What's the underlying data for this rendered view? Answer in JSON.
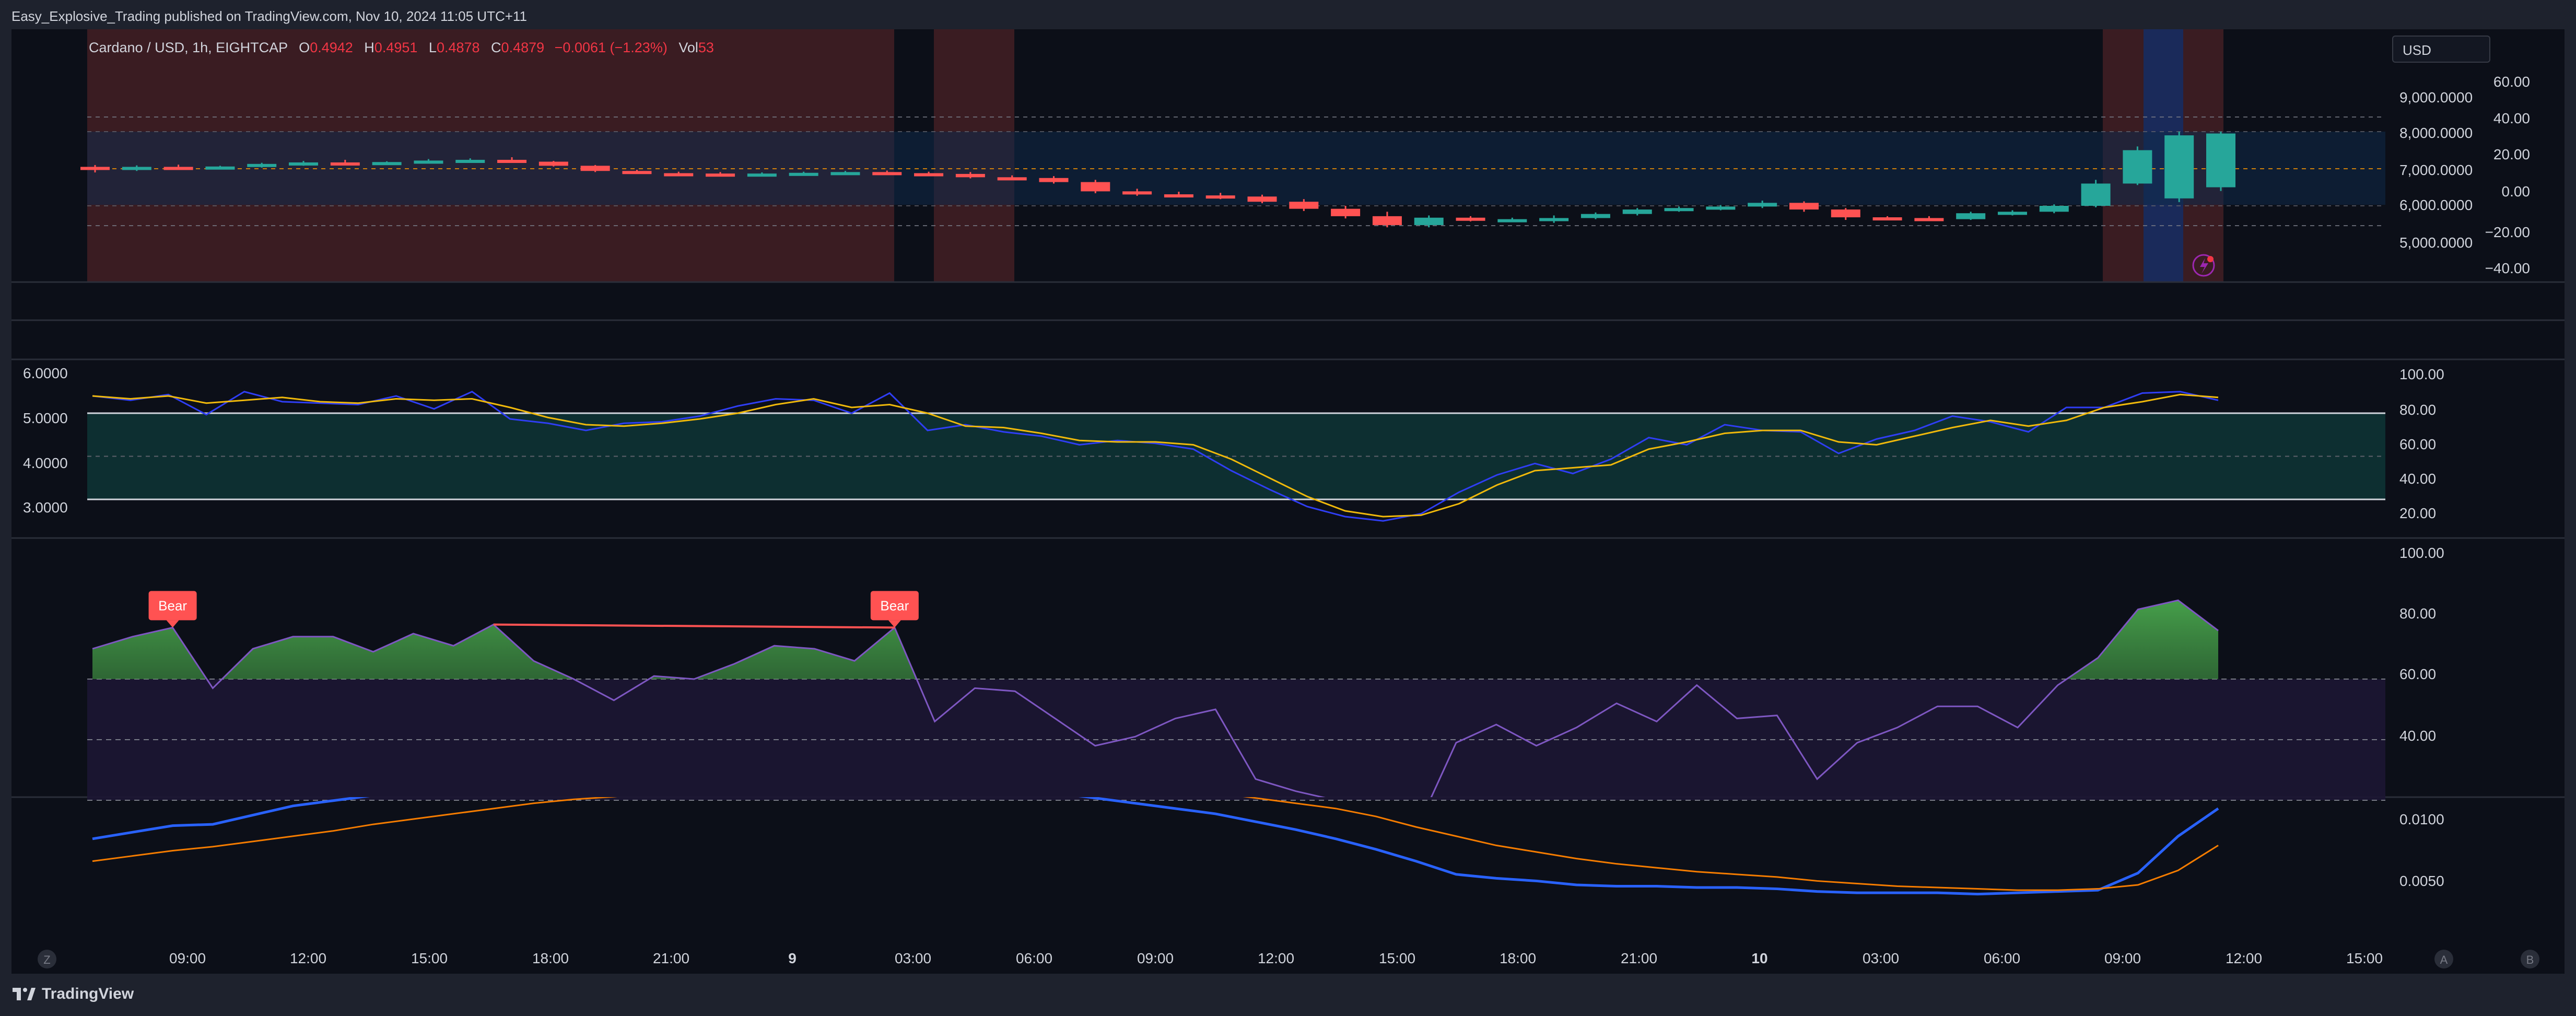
{
  "header": {
    "publish_line": "Easy_Explosive_Trading published on TradingView.com, Nov 10, 2024 11:05 UTC+11"
  },
  "legend": {
    "symbol": "Cardano / USD, 1h, EIGHTCAP",
    "o_label": "O",
    "o_value": "0.4942",
    "h_label": "H",
    "h_value": "0.4951",
    "l_label": "L",
    "l_value": "0.4878",
    "c_label": "C",
    "c_value": "0.4879",
    "change": "−0.0061 (−1.23%)",
    "vol_label": "Vol",
    "vol_value": "53"
  },
  "currency_button": "USD",
  "panes": {
    "price": {
      "left_axis": [
        "60.00",
        "40.00",
        "20.00",
        "0.00",
        "−20.00",
        "−40.00"
      ],
      "right_axis": [
        "9,000.0000",
        "8,000.0000",
        "7,000.0000",
        "6,000.0000",
        "5,000.0000"
      ]
    },
    "stoch": {
      "left_axis": [
        "6.0000",
        "5.0000",
        "4.0000",
        "3.0000"
      ],
      "right_axis": [
        "100.00",
        "80.00",
        "60.00",
        "40.00",
        "20.00"
      ]
    },
    "rsi": {
      "right_axis": [
        "100.00",
        "80.00",
        "60.00",
        "40.00"
      ],
      "labels": [
        "Bear",
        "Bear"
      ]
    },
    "ma": {
      "right_axis": [
        "0.0100",
        "0.0050"
      ]
    }
  },
  "time_axis": [
    "09:00",
    "12:00",
    "15:00",
    "18:00",
    "21:00",
    "9",
    "03:00",
    "06:00",
    "09:00",
    "12:00",
    "15:00",
    "18:00",
    "21:00",
    "10",
    "03:00",
    "06:00",
    "09:00",
    "12:00",
    "15:00"
  ],
  "time_axis_bold": [
    "9",
    "10"
  ],
  "corner_buttons": {
    "left": "Z",
    "auto": "A",
    "log": "B"
  },
  "footer": {
    "brand": "TradingView"
  },
  "colors": {
    "up": "#26a69a",
    "down": "#ff5252",
    "stoch_k": "#2f3ef5",
    "stoch_d": "#f0b90b",
    "rsi": "#7e57c2",
    "bear": "#ff5252",
    "ma_fast": "#2962ff",
    "ma_slow": "#f57c00"
  },
  "chart_data": [
    {
      "type": "candlestick",
      "title": "Cardano / USD, 1h, EIGHTCAP",
      "candles": [
        {
          "o": 0.5,
          "h": 1,
          "l": -1,
          "c": 0.2
        },
        {
          "o": 0.2,
          "h": 0.9,
          "l": -0.6,
          "c": 0.5
        },
        {
          "o": 0.5,
          "h": 1.1,
          "l": 0.0,
          "c": 0.3
        },
        {
          "o": 0.3,
          "h": 0.8,
          "l": -0.2,
          "c": 0.6
        },
        {
          "o": 0.6,
          "h": 1.6,
          "l": 0.3,
          "c": 1.3
        },
        {
          "o": 1.3,
          "h": 2.1,
          "l": 0.8,
          "c": 1.7
        },
        {
          "o": 1.7,
          "h": 2.4,
          "l": 1.2,
          "c": 1.5
        },
        {
          "o": 1.5,
          "h": 2.0,
          "l": 1.0,
          "c": 1.8
        },
        {
          "o": 1.8,
          "h": 2.6,
          "l": 1.4,
          "c": 2.2
        },
        {
          "o": 2.2,
          "h": 2.8,
          "l": 1.7,
          "c": 2.4
        },
        {
          "o": 2.4,
          "h": 3.1,
          "l": 1.9,
          "c": 1.9
        },
        {
          "o": 1.9,
          "h": 2.1,
          "l": 0.6,
          "c": 0.8
        },
        {
          "o": 0.8,
          "h": 1.0,
          "l": -0.9,
          "c": -0.6
        },
        {
          "o": -0.6,
          "h": -0.3,
          "l": -1.4,
          "c": -1.2
        },
        {
          "o": -1.2,
          "h": -0.8,
          "l": -1.6,
          "c": -1.3
        },
        {
          "o": -1.3,
          "h": -0.9,
          "l": -1.9,
          "c": -1.6
        },
        {
          "o": -1.6,
          "h": -1.0,
          "l": -1.9,
          "c": -1.3
        },
        {
          "o": -1.3,
          "h": -0.8,
          "l": -1.6,
          "c": -1.1
        },
        {
          "o": -1.1,
          "h": -0.6,
          "l": -1.4,
          "c": -0.9
        },
        {
          "o": -0.9,
          "h": -0.5,
          "l": -1.4,
          "c": -1.2
        },
        {
          "o": -1.2,
          "h": -0.8,
          "l": -1.6,
          "c": -1.4
        },
        {
          "o": -1.4,
          "h": -0.9,
          "l": -2.6,
          "c": -2.3
        },
        {
          "o": -2.3,
          "h": -1.8,
          "l": -3.0,
          "c": -2.5
        },
        {
          "o": -2.5,
          "h": -2.0,
          "l": -4.0,
          "c": -3.6
        },
        {
          "o": -3.6,
          "h": -3.0,
          "l": -6.6,
          "c": -6.1
        },
        {
          "o": -6.1,
          "h": -5.4,
          "l": -7.3,
          "c": -6.9
        },
        {
          "o": -6.9,
          "h": -6.2,
          "l": -7.7,
          "c": -7.2
        },
        {
          "o": -7.2,
          "h": -6.5,
          "l": -8.2,
          "c": -7.5
        },
        {
          "o": -7.5,
          "h": -7.0,
          "l": -9.3,
          "c": -8.9
        },
        {
          "o": -8.9,
          "h": -8.2,
          "l": -11.4,
          "c": -10.8
        },
        {
          "o": -10.8,
          "h": -10.0,
          "l": -13.4,
          "c": -12.8
        },
        {
          "o": -12.8,
          "h": -11.6,
          "l": -15.8,
          "c": -15.2
        },
        {
          "o": -15.2,
          "h": -12.6,
          "l": -15.8,
          "c": -13.2
        },
        {
          "o": -13.2,
          "h": -12.8,
          "l": -14.2,
          "c": -13.9
        },
        {
          "o": -13.9,
          "h": -13.2,
          "l": -14.2,
          "c": -13.6
        },
        {
          "o": -13.6,
          "h": -12.6,
          "l": -14.6,
          "c": -13.3
        },
        {
          "o": -13.3,
          "h": -11.8,
          "l": -13.6,
          "c": -12.2
        },
        {
          "o": -12.2,
          "h": -10.6,
          "l": -12.6,
          "c": -11.0
        },
        {
          "o": -11.0,
          "h": -10.2,
          "l": -11.6,
          "c": -10.6
        },
        {
          "o": -10.6,
          "h": -9.8,
          "l": -11.2,
          "c": -10.2
        },
        {
          "o": -10.2,
          "h": -8.6,
          "l": -10.6,
          "c": -9.2
        },
        {
          "o": -9.2,
          "h": -8.8,
          "l": -11.6,
          "c": -11.0
        },
        {
          "o": -11.0,
          "h": -10.6,
          "l": -13.8,
          "c": -13.1
        },
        {
          "o": -13.1,
          "h": -12.8,
          "l": -13.5,
          "c": -13.3
        },
        {
          "o": -13.3,
          "h": -12.8,
          "l": -13.8,
          "c": -13.6
        },
        {
          "o": -13.6,
          "h": -11.6,
          "l": -13.8,
          "c": -12.0
        },
        {
          "o": -12.0,
          "h": -11.2,
          "l": -12.6,
          "c": -11.6
        },
        {
          "o": -11.6,
          "h": -9.6,
          "l": -12.0,
          "c": -10.0
        },
        {
          "o": -10.0,
          "h": -3.0,
          "l": -10.4,
          "c": -4.0
        },
        {
          "o": -4.0,
          "h": 6.0,
          "l": -4.4,
          "c": 5.0
        },
        {
          "o": -8.0,
          "h": 10.0,
          "l": -9.0,
          "c": 9.0
        },
        {
          "o": -5.0,
          "h": 10.0,
          "l": -6.0,
          "c": 9.5
        }
      ]
    },
    {
      "type": "line",
      "title": "Stochastic",
      "ylim": [
        20,
        100
      ],
      "series": []
    },
    {
      "type": "line",
      "title": "RSI divergence",
      "ylim": [
        30,
        100
      ],
      "series": []
    },
    {
      "type": "line",
      "title": "Moving averages",
      "ylim": [
        0.003,
        0.011
      ],
      "series": []
    }
  ]
}
